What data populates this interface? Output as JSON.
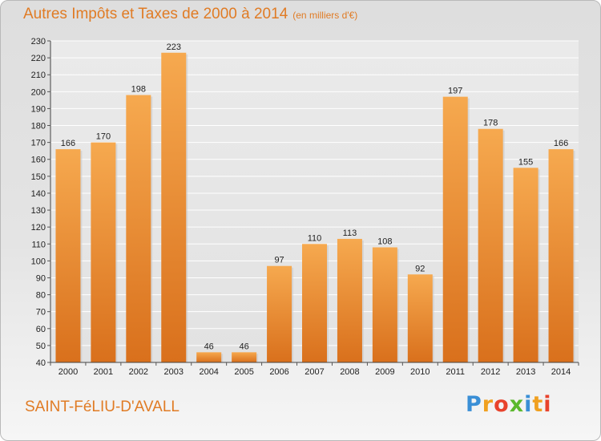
{
  "title": "Autres Impôts et Taxes de 2000 à 2014",
  "unit_note": "(en milliers d'€)",
  "commune": "SAINT-FéLIU-D'AVALL",
  "logo": {
    "text": "Proxiti",
    "letters": [
      {
        "ch": "P",
        "color": "#3a8fd6"
      },
      {
        "ch": "r",
        "color": "#f0a020"
      },
      {
        "ch": "o",
        "color": "#e8432c"
      },
      {
        "ch": "x",
        "color": "#5bb82d"
      },
      {
        "ch": "i",
        "color": "#3a8fd6"
      },
      {
        "ch": "t",
        "color": "#f0a020"
      },
      {
        "ch": "i",
        "color": "#e8432c"
      }
    ]
  },
  "chart_data": {
    "type": "bar",
    "title": "Autres Impôts et Taxes de 2000 à 2014",
    "subtitle": "(en milliers d'€)",
    "xlabel": "",
    "ylabel": "",
    "categories": [
      "2000",
      "2001",
      "2002",
      "2003",
      "2004",
      "2005",
      "2006",
      "2007",
      "2008",
      "2009",
      "2010",
      "2011",
      "2012",
      "2013",
      "2014"
    ],
    "values": [
      166,
      170,
      198,
      223,
      46,
      46,
      97,
      110,
      113,
      108,
      92,
      197,
      178,
      155,
      166
    ],
    "ylim": [
      40,
      230
    ],
    "yticks": [
      40,
      50,
      60,
      70,
      80,
      90,
      100,
      110,
      120,
      130,
      140,
      150,
      160,
      170,
      180,
      190,
      200,
      210,
      220,
      230
    ],
    "grid": true,
    "bar_color": "#f0932f"
  }
}
